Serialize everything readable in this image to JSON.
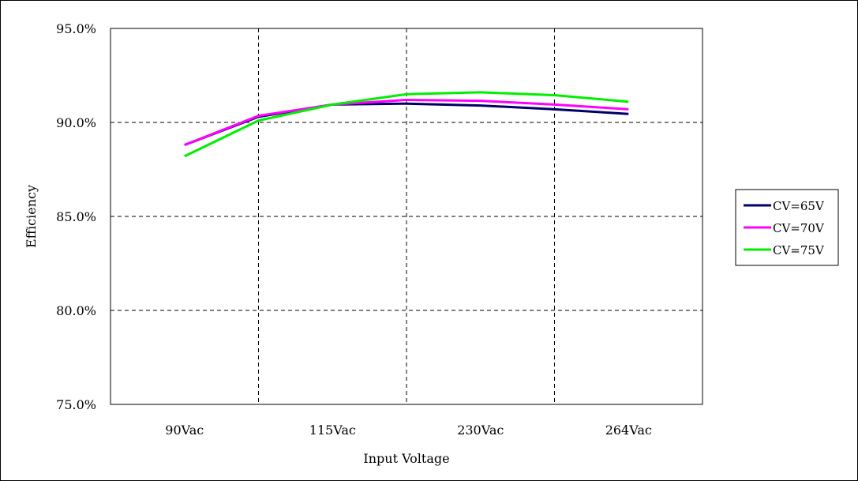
{
  "chart_data": {
    "type": "line",
    "xlabel": "Input Voltage",
    "ylabel": "Efficiency",
    "categories": [
      "90Vac",
      "115Vac",
      "230Vac",
      "264Vac"
    ],
    "y_ticks": [
      "75.0%",
      "80.0%",
      "85.0%",
      "90.0%",
      "95.0%"
    ],
    "ylim": [
      75,
      95
    ],
    "grid": true,
    "grid_style": "dashed",
    "legend_position": "right",
    "series": [
      {
        "name": "CV=65V",
        "color": "#000066",
        "x": [
          0,
          0.5,
          1,
          1.5,
          2,
          2.5,
          3
        ],
        "values": [
          88.8,
          90.3,
          90.95,
          91.0,
          90.9,
          90.7,
          90.45
        ]
      },
      {
        "name": "CV=70V",
        "color": "#ff00ff",
        "x": [
          0,
          0.5,
          1,
          1.5,
          2,
          2.5,
          3
        ],
        "values": [
          88.8,
          90.35,
          90.95,
          91.2,
          91.15,
          90.95,
          90.7
        ]
      },
      {
        "name": "CV=75V",
        "color": "#00ee00",
        "x": [
          0,
          0.5,
          1,
          1.5,
          2,
          2.5,
          3
        ],
        "values": [
          88.2,
          90.1,
          90.95,
          91.5,
          91.6,
          91.45,
          91.1
        ]
      }
    ]
  }
}
